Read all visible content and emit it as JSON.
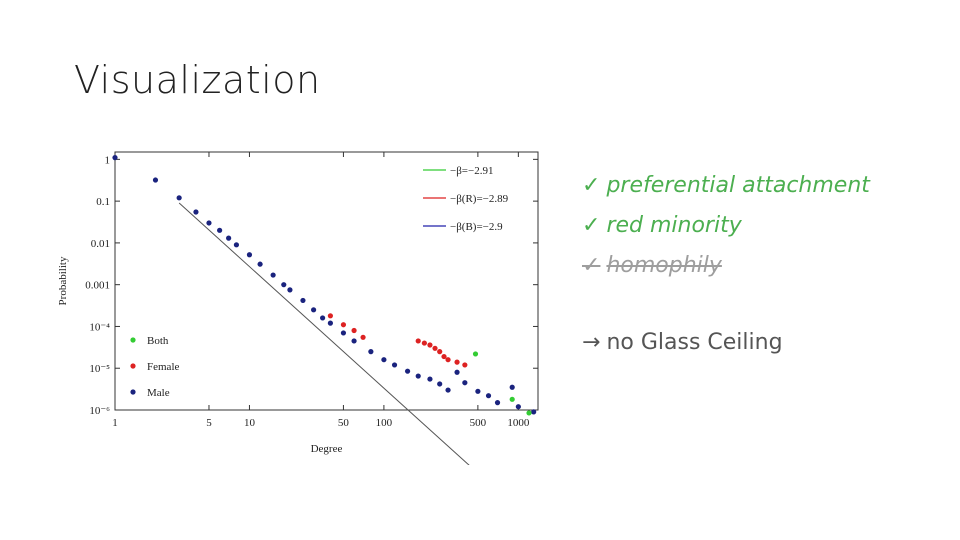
{
  "slide": {
    "title": "Visualization",
    "bullets": [
      {
        "mark": "✓",
        "text": "preferential attachment",
        "state": "checked"
      },
      {
        "mark": "✓",
        "text": "red minority",
        "state": "checked"
      },
      {
        "mark": "✓",
        "text": "homophily",
        "state": "struck"
      }
    ],
    "conclusion": {
      "arrow": "→",
      "text": "no Glass Ceiling"
    },
    "colors": {
      "bullet_green": "#4caf50",
      "bullet_struck": "#9e9e9e"
    }
  },
  "chart_data": {
    "type": "scatter",
    "xlabel": "Degree",
    "ylabel": "Probability",
    "xscale": "log",
    "yscale": "log",
    "xlim": [
      1,
      1400
    ],
    "ylim": [
      1e-06,
      1.5
    ],
    "x_ticks": [
      {
        "value": 1,
        "label": "1"
      },
      {
        "value": 5,
        "label": "5"
      },
      {
        "value": 10,
        "label": "10"
      },
      {
        "value": 50,
        "label": "50"
      },
      {
        "value": 100,
        "label": "100"
      },
      {
        "value": 500,
        "label": "500"
      },
      {
        "value": 1000,
        "label": "1000"
      }
    ],
    "y_ticks": [
      {
        "value": 1,
        "label": "1"
      },
      {
        "value": 0.1,
        "label": "0.1"
      },
      {
        "value": 0.01,
        "label": "0.01"
      },
      {
        "value": 0.001,
        "label": "0.001"
      },
      {
        "value": 0.0001,
        "label": "10⁻⁴"
      },
      {
        "value": 1e-05,
        "label": "10⁻⁵"
      },
      {
        "value": 1e-06,
        "label": "10⁻⁶"
      }
    ],
    "fit_lines": [
      {
        "label": "−β=−2.91",
        "color": "#33cc33",
        "slope": -2.91
      },
      {
        "label": "−β(R)=−2.89",
        "color": "#dd2222",
        "slope": -2.89
      },
      {
        "label": "−β(B)=−2.9",
        "color": "#2222aa",
        "slope": -2.9
      }
    ],
    "series": [
      {
        "name": "Both",
        "color": "#33cc33",
        "points": [
          [
            480,
            2.2e-05
          ],
          [
            900,
            1.8e-06
          ],
          [
            1200,
            8.5e-07
          ]
        ]
      },
      {
        "name": "Female",
        "color": "#dd2222",
        "points": [
          [
            40,
            0.00018
          ],
          [
            50,
            0.00011
          ],
          [
            60,
            8e-05
          ],
          [
            70,
            5.5e-05
          ],
          [
            180,
            4.5e-05
          ],
          [
            200,
            4e-05
          ],
          [
            220,
            3.6e-05
          ],
          [
            240,
            3e-05
          ],
          [
            260,
            2.5e-05
          ],
          [
            280,
            1.9e-05
          ],
          [
            300,
            1.6e-05
          ],
          [
            350,
            1.4e-05
          ],
          [
            400,
            1.2e-05
          ]
        ]
      },
      {
        "name": "Male",
        "color": "#1a237e",
        "points": [
          [
            1,
            1.1
          ],
          [
            2,
            0.32
          ],
          [
            3,
            0.12
          ],
          [
            4,
            0.055
          ],
          [
            5,
            0.03
          ],
          [
            6,
            0.02
          ],
          [
            7,
            0.013
          ],
          [
            8,
            0.009
          ],
          [
            10,
            0.0052
          ],
          [
            12,
            0.0031
          ],
          [
            15,
            0.0017
          ],
          [
            18,
            0.001
          ],
          [
            20,
            0.00075
          ],
          [
            25,
            0.00042
          ],
          [
            30,
            0.00025
          ],
          [
            35,
            0.00016
          ],
          [
            40,
            0.00012
          ],
          [
            50,
            7e-05
          ],
          [
            60,
            4.5e-05
          ],
          [
            80,
            2.5e-05
          ],
          [
            100,
            1.6e-05
          ],
          [
            120,
            1.2e-05
          ],
          [
            150,
            8.5e-06
          ],
          [
            180,
            6.5e-06
          ],
          [
            220,
            5.5e-06
          ],
          [
            260,
            4.2e-06
          ],
          [
            300,
            3e-06
          ],
          [
            350,
            8e-06
          ],
          [
            400,
            4.5e-06
          ],
          [
            500,
            2.8e-06
          ],
          [
            600,
            2.2e-06
          ],
          [
            700,
            1.5e-06
          ],
          [
            900,
            3.5e-06
          ],
          [
            1000,
            1.2e-06
          ],
          [
            1300,
            9e-07
          ]
        ]
      }
    ]
  }
}
